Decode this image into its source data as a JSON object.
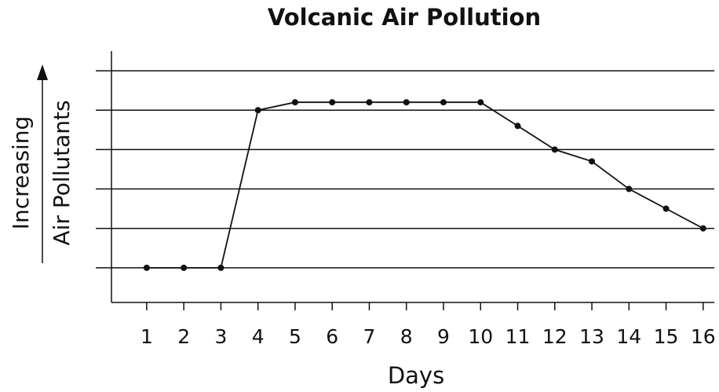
{
  "chart_data": {
    "type": "line",
    "title": "Volcanic Air Pollution",
    "xlabel": "Days",
    "ylabel": [
      "Increasing",
      "Air Pollutants"
    ],
    "x": [
      1,
      2,
      3,
      4,
      5,
      6,
      7,
      8,
      9,
      10,
      11,
      12,
      13,
      14,
      15,
      16
    ],
    "series": [
      {
        "color": "#111111",
        "values": [
          1,
          1,
          1,
          5,
          5.2,
          5.2,
          5.2,
          5.2,
          5.2,
          5.2,
          4.6,
          4,
          3.7,
          3,
          2.5,
          2
        ]
      }
    ],
    "xlim": [
      0.05,
      16.3
    ],
    "xticks": [
      1,
      2,
      3,
      4,
      5,
      6,
      7,
      8,
      9,
      10,
      11,
      12,
      13,
      14,
      15,
      16
    ],
    "ylim": [
      0.12,
      6.5
    ],
    "yticks": [
      1,
      2,
      3,
      4,
      5,
      6
    ],
    "grid": true
  }
}
